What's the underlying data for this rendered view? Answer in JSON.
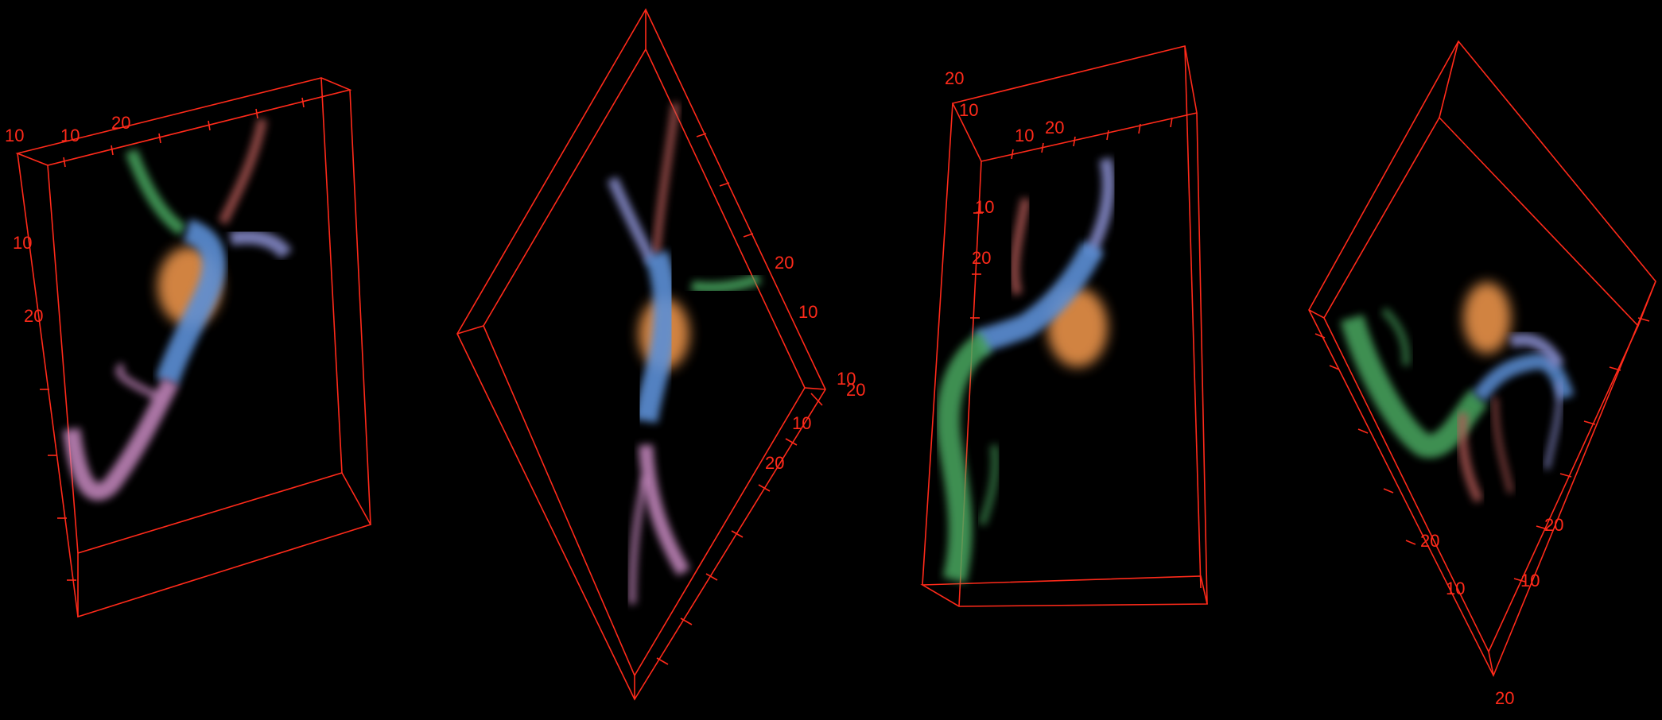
{
  "image": {
    "background": "#000000",
    "box_color": "#ff2a1a",
    "segment_colors": {
      "soma": "#e8924a",
      "trunk": "#5b8fd6",
      "green_branch": "#4aa860",
      "pink_branch": "#c98ac2",
      "red_branch": "#b45a56",
      "violet_branch": "#8a8fd0"
    }
  },
  "panels": [
    {
      "labels": [
        "10",
        "10",
        "20",
        "10",
        "20"
      ]
    },
    {
      "labels": [
        "20",
        "10",
        "10",
        "20",
        "10",
        "20"
      ]
    },
    {
      "labels": [
        "20",
        "10",
        "10",
        "20",
        "10",
        "20"
      ]
    },
    {
      "labels": [
        "20",
        "20",
        "10",
        "10",
        "20"
      ]
    }
  ]
}
